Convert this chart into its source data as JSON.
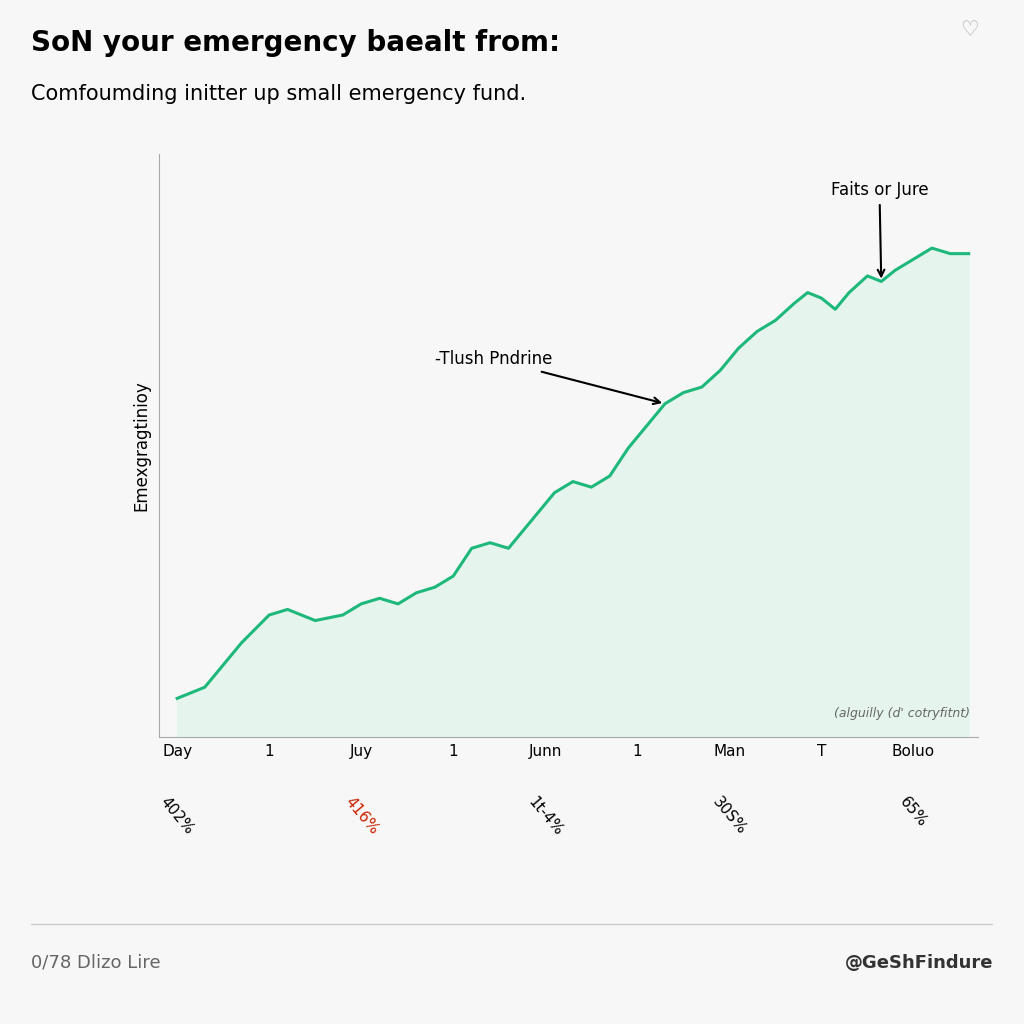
{
  "title": "SoN your emergency baealt from:",
  "subtitle": "Comfoumding initter up small emergency fund.",
  "ylabel": "Emexgragtinioy",
  "footnote": "(alguilly (d' cotryfitnt)",
  "annotation1_text": "-Tlush Pndrine",
  "annotation2_text": "Faits or Jure",
  "xtick_labels": [
    "Day",
    "1",
    "Juy",
    "1",
    "Junn",
    "1",
    "Man",
    "T",
    "Boluo"
  ],
  "xtick_positions": [
    0,
    1,
    2,
    3,
    4,
    5,
    6,
    7,
    8
  ],
  "xsub_labels": [
    "402%",
    "416%",
    "1t-4%",
    "30S%",
    "65%"
  ],
  "xsub_positions": [
    0,
    2,
    4,
    6,
    8
  ],
  "xsub_colors": [
    "#000000",
    "#cc2200",
    "#000000",
    "#000000",
    "#000000"
  ],
  "footer_left": "0/78 Dlizo Lire",
  "footer_right": "@GeShFindure",
  "line_color": "#1db87a",
  "fill_color": "#e5f5ee",
  "bg_color": "#f7f7f7",
  "spine_color": "#aaaaaa",
  "x_values": [
    0,
    0.3,
    0.7,
    1.0,
    1.2,
    1.5,
    1.8,
    2.0,
    2.2,
    2.4,
    2.6,
    2.8,
    3.0,
    3.2,
    3.4,
    3.6,
    3.7,
    3.9,
    4.1,
    4.3,
    4.5,
    4.7,
    4.9,
    5.1,
    5.3,
    5.5,
    5.7,
    5.9,
    6.1,
    6.3,
    6.5,
    6.7,
    6.85,
    7.0,
    7.15,
    7.3,
    7.5,
    7.65,
    7.8,
    8.0,
    8.2,
    8.4,
    8.6
  ],
  "y_values": [
    0.07,
    0.09,
    0.17,
    0.22,
    0.23,
    0.21,
    0.22,
    0.24,
    0.25,
    0.24,
    0.26,
    0.27,
    0.29,
    0.34,
    0.35,
    0.34,
    0.36,
    0.4,
    0.44,
    0.46,
    0.45,
    0.47,
    0.52,
    0.56,
    0.6,
    0.62,
    0.63,
    0.66,
    0.7,
    0.73,
    0.75,
    0.78,
    0.8,
    0.79,
    0.77,
    0.8,
    0.83,
    0.82,
    0.84,
    0.86,
    0.88,
    0.87,
    0.87
  ],
  "title_fontsize": 20,
  "subtitle_fontsize": 15,
  "ylabel_fontsize": 12,
  "tick_fontsize": 11,
  "sub_fontsize": 11,
  "footnote_fontsize": 9,
  "annot_fontsize": 12,
  "footer_fontsize": 13
}
